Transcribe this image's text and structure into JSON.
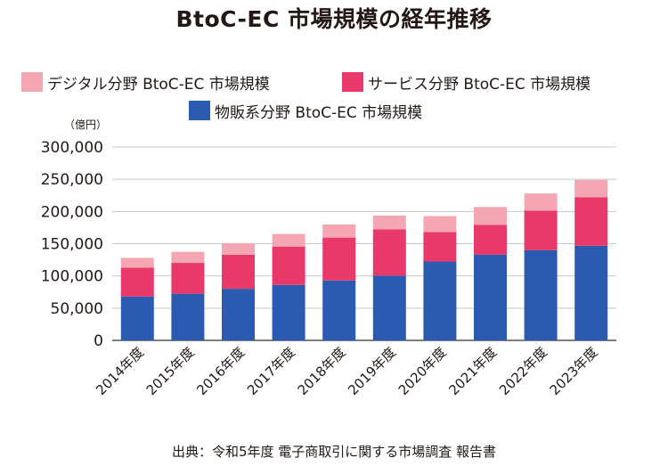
{
  "chart_data": {
    "type": "bar",
    "stacked": true,
    "title": "BtoC-EC 市場規模の経年推移",
    "unit_label": "（億円）",
    "categories": [
      "2014年度",
      "2015年度",
      "2016年度",
      "2017年度",
      "2018年度",
      "2019年度",
      "2020年度",
      "2021年度",
      "2022年度",
      "2023年度"
    ],
    "series": [
      {
        "name": "物販系分野 BtoC-EC 市場規模",
        "color": "#2b5bb0",
        "values": [
          68000,
          72400,
          80000,
          86000,
          92992,
          100515,
          122333,
          132865,
          139997,
          146760
        ]
      },
      {
        "name": "サービス分野 BtoC-EC 市場規模",
        "color": "#e8396a",
        "values": [
          44800,
          47800,
          53000,
          59600,
          66500,
          71672,
          45832,
          46424,
          61477,
          75169
        ]
      },
      {
        "name": "デジタル分野 BtoC-EC 市場規模",
        "color": "#f4a7b3",
        "values": [
          15200,
          17200,
          17800,
          19500,
          20382,
          21422,
          24614,
          27661,
          26506,
          26953
        ]
      }
    ],
    "legend_order": [
      2,
      1,
      0
    ],
    "ylim": [
      0,
      300000
    ],
    "yticks": [
      "0",
      "50,000",
      "100,000",
      "150,000",
      "200,000",
      "250,000",
      "300,000"
    ],
    "ytick_values": [
      0,
      50000,
      100000,
      150000,
      200000,
      250000,
      300000
    ],
    "grid": true,
    "legend_position": "top"
  },
  "source": "出典：令和5年度 電子商取引に関する市場調査 報告書"
}
